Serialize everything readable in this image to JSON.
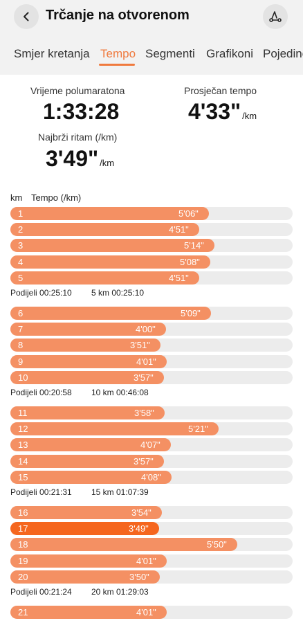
{
  "header": {
    "title": "Trčanje na otvorenom"
  },
  "tabs": [
    {
      "label": "Smjer kretanja"
    },
    {
      "label": "Tempo"
    },
    {
      "label": "Segmenti"
    },
    {
      "label": "Grafikoni"
    },
    {
      "label": "Pojedinosti"
    }
  ],
  "active_tab": "Tempo",
  "stats": {
    "half_marathon_label": "Vrijeme polumaratona",
    "half_marathon_value": "1:33:28",
    "avg_pace_label": "Prosječan tempo",
    "avg_pace_value": "4'33\"",
    "avg_pace_unit": "/km",
    "fastest_label": "Najbrži ritam (/km)",
    "fastest_value": "3'49\"",
    "fastest_unit": "/km"
  },
  "columns": {
    "km": "km",
    "pace": "Tempo (/km)"
  },
  "kms": [
    {
      "km": "1",
      "pace": "5'06\"",
      "seconds": 306
    },
    {
      "km": "2",
      "pace": "4'51\"",
      "seconds": 291
    },
    {
      "km": "3",
      "pace": "5'14\"",
      "seconds": 314
    },
    {
      "km": "4",
      "pace": "5'08\"",
      "seconds": 308
    },
    {
      "km": "5",
      "pace": "4'51\"",
      "seconds": 291
    },
    {
      "km": "6",
      "pace": "5'09\"",
      "seconds": 309
    },
    {
      "km": "7",
      "pace": "4'00\"",
      "seconds": 240
    },
    {
      "km": "8",
      "pace": "3'51\"",
      "seconds": 231
    },
    {
      "km": "9",
      "pace": "4'01\"",
      "seconds": 241
    },
    {
      "km": "10",
      "pace": "3'57\"",
      "seconds": 237
    },
    {
      "km": "11",
      "pace": "3'58\"",
      "seconds": 238
    },
    {
      "km": "12",
      "pace": "5'21\"",
      "seconds": 321
    },
    {
      "km": "13",
      "pace": "4'07\"",
      "seconds": 247
    },
    {
      "km": "14",
      "pace": "3'57\"",
      "seconds": 237
    },
    {
      "km": "15",
      "pace": "4'08\"",
      "seconds": 248
    },
    {
      "km": "16",
      "pace": "3'54\"",
      "seconds": 234
    },
    {
      "km": "17",
      "pace": "3'49\"",
      "seconds": 229,
      "fastest": true
    },
    {
      "km": "18",
      "pace": "5'50\"",
      "seconds": 350
    },
    {
      "km": "19",
      "pace": "4'01\"",
      "seconds": 241
    },
    {
      "km": "20",
      "pace": "3'50\"",
      "seconds": 230
    },
    {
      "km": "21",
      "pace": "4'01\"",
      "seconds": 241
    }
  ],
  "splits": [
    {
      "split": "Podijeli 00:25:10",
      "cumulative": "5 km 00:25:10"
    },
    {
      "split": "Podijeli 00:20:58",
      "cumulative": "10 km 00:46:08"
    },
    {
      "split": "Podijeli 00:21:31",
      "cumulative": "15 km 01:07:39"
    },
    {
      "split": "Podijeli 00:21:24",
      "cumulative": "20 km 01:29:03"
    }
  ],
  "colors": {
    "accent": "#f07a3e",
    "bar": "#f49063",
    "bar_fastest": "#f5661e",
    "track": "#ececec"
  },
  "icons": {
    "back": "chevron-left-icon",
    "route": "route-icon"
  }
}
